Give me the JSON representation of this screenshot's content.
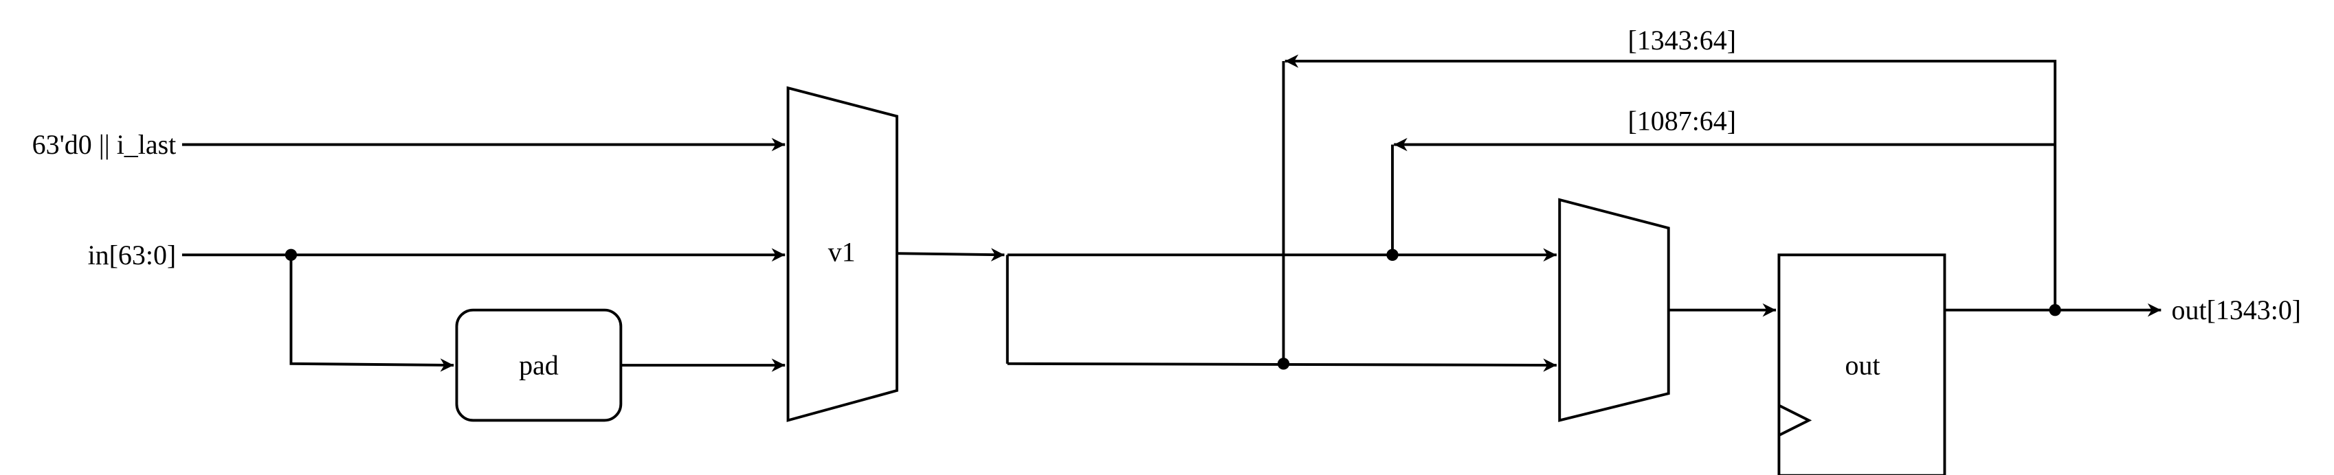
{
  "inputs": {
    "last_input": "63'd0 || i_last",
    "data_input": "in[63:0]"
  },
  "blocks": {
    "pad": "pad",
    "mux_v1": "v1",
    "register_out": "out"
  },
  "feedback": {
    "upper_slice": "[1343:64]",
    "lower_slice": "[1087:64]"
  },
  "outputs": {
    "data_output": "out[1343:0]"
  }
}
